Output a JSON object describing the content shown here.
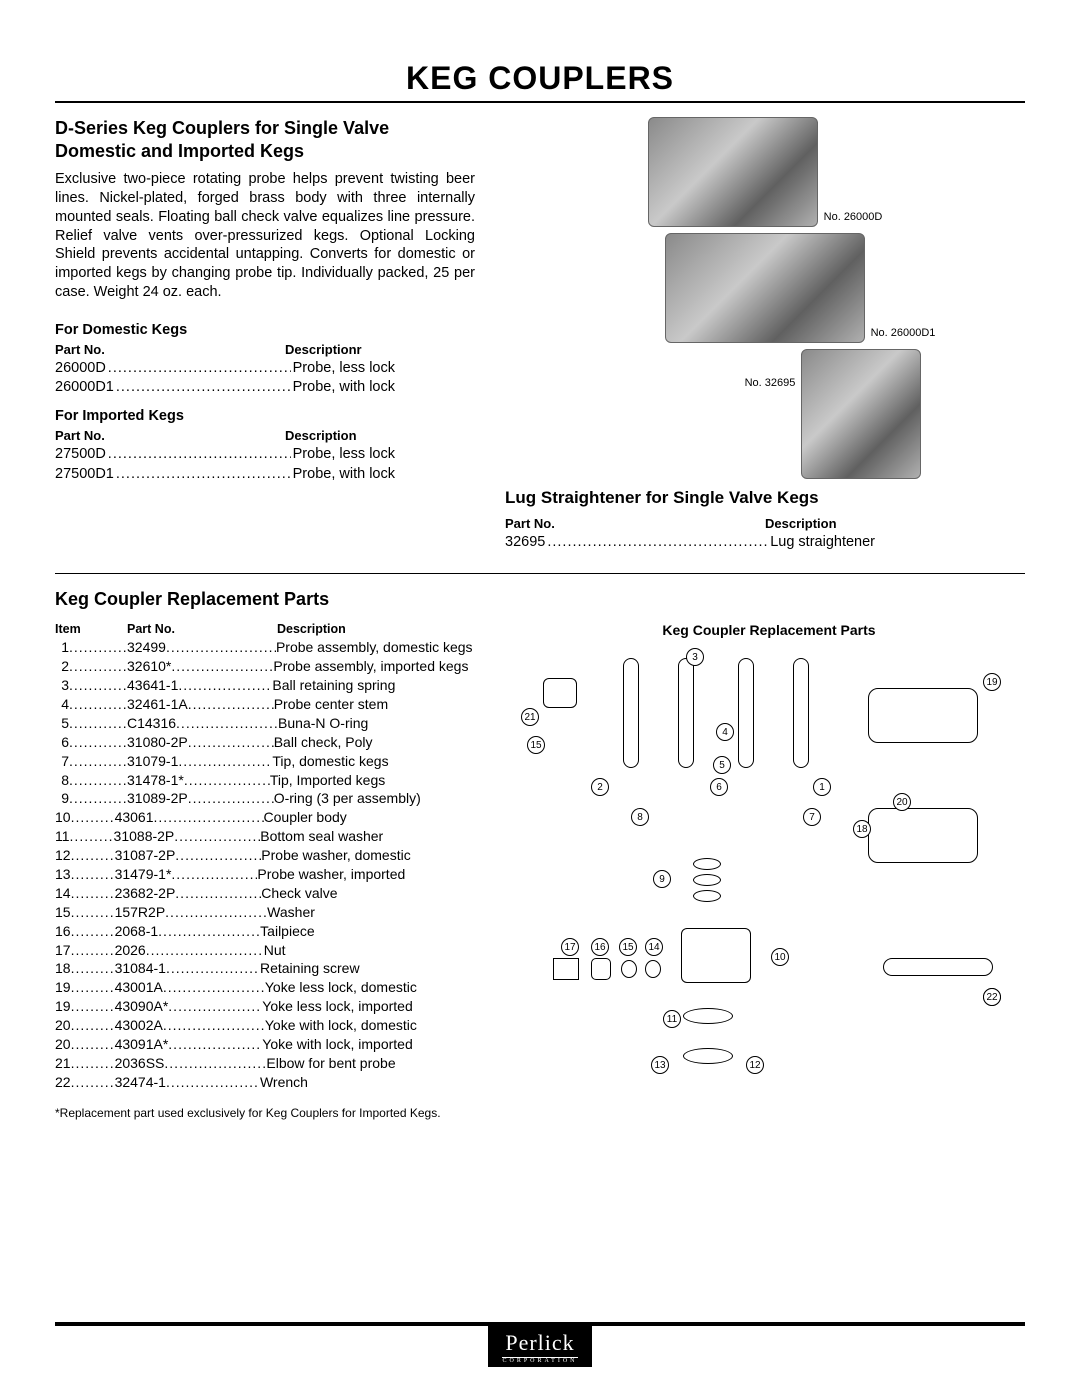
{
  "page_title": "KEG COUPLERS",
  "d_series": {
    "heading": "D-Series Keg Couplers for Single Valve Domestic and Imported Kegs",
    "body": "Exclusive two-piece rotating probe helps prevent twisting beer lines. Nickel-plated, forged brass body with three internally mounted seals. Floating ball check valve equalizes line pressure. Relief valve vents over-pressurized kegs. Optional Locking Shield prevents accidental untapping. Converts for domestic or imported kegs by changing probe tip. Individually packed, 25 per case. Weight 24 oz. each."
  },
  "domestic": {
    "heading": "For Domestic Kegs",
    "col_a": "Part No.",
    "col_b": "Descriptionr",
    "rows": [
      {
        "pn": "26000D",
        "desc": "Probe, less lock"
      },
      {
        "pn": "26000D1",
        "desc": "Probe, with lock"
      }
    ]
  },
  "imported": {
    "heading": "For Imported Kegs",
    "col_a": "Part No.",
    "col_b": "Description",
    "rows": [
      {
        "pn": "27500D",
        "desc": "Probe, less lock"
      },
      {
        "pn": "27500D1",
        "desc": "Probe, with lock"
      }
    ]
  },
  "figures": {
    "f1": "No. 26000D",
    "f2": "No. 26000D1",
    "f3": "No. 32695"
  },
  "lug": {
    "heading": "Lug Straightener for Single Valve Kegs",
    "col_a": "Part No.",
    "col_b": "Description",
    "rows": [
      {
        "pn": "32695",
        "desc": "Lug straightener"
      }
    ]
  },
  "replacement": {
    "heading": "Keg Coupler Replacement Parts",
    "col_item": "Item",
    "col_part": "Part No.",
    "col_desc": "Description",
    "diagram_title": "Keg Coupler Replacement Parts",
    "rows": [
      {
        "item": "1",
        "pn": "32499",
        "desc": "Probe assembly, domestic kegs"
      },
      {
        "item": "2",
        "pn": "32610*",
        "desc": "Probe assembly, imported kegs"
      },
      {
        "item": "3",
        "pn": "43641-1",
        "desc": "Ball retaining spring"
      },
      {
        "item": "4",
        "pn": "32461-1A",
        "desc": "Probe center stem"
      },
      {
        "item": "5",
        "pn": "C14316",
        "desc": "Buna-N O-ring"
      },
      {
        "item": "6",
        "pn": "31080-2P",
        "desc": "Ball check, Poly"
      },
      {
        "item": "7",
        "pn": "31079-1",
        "desc": "Tip, domestic kegs"
      },
      {
        "item": "8",
        "pn": "31478-1*",
        "desc": "Tip, Imported kegs"
      },
      {
        "item": "9",
        "pn": "31089-2P",
        "desc": "O-ring (3 per assembly)"
      },
      {
        "item": "10",
        "pn": "43061",
        "desc": "Coupler body"
      },
      {
        "item": "11",
        "pn": "31088-2P",
        "desc": "Bottom seal washer"
      },
      {
        "item": "12",
        "pn": "31087-2P",
        "desc": "Probe washer, domestic"
      },
      {
        "item": "13",
        "pn": "31479-1*",
        "desc": "Probe washer, imported"
      },
      {
        "item": "14",
        "pn": "23682-2P",
        "desc": "Check valve"
      },
      {
        "item": "15",
        "pn": "157R2P",
        "desc": "Washer"
      },
      {
        "item": "16",
        "pn": "2068-1",
        "desc": "Tailpiece"
      },
      {
        "item": "17",
        "pn": "2026",
        "desc": "Nut"
      },
      {
        "item": "18",
        "pn": "31084-1",
        "desc": "Retaining screw"
      },
      {
        "item": "19",
        "pn": "43001A",
        "desc": "Yoke less lock, domestic"
      },
      {
        "item": "19",
        "pn": "43090A*",
        "desc": "Yoke less lock, imported"
      },
      {
        "item": "20",
        "pn": "43002A",
        "desc": "Yoke with lock, domestic"
      },
      {
        "item": "20",
        "pn": "43091A*",
        "desc": "Yoke with lock, imported"
      },
      {
        "item": "21",
        "pn": "2036SS",
        "desc": "Elbow for bent probe"
      },
      {
        "item": "22",
        "pn": "32474-1",
        "desc": "Wrench"
      }
    ],
    "footnote": "*Replacement part used exclusively for Keg Couplers for Imported Kegs."
  },
  "diagram_callouts": [
    "1",
    "2",
    "3",
    "4",
    "5",
    "6",
    "7",
    "8",
    "9",
    "10",
    "11",
    "12",
    "13",
    "14",
    "15",
    "16",
    "17",
    "18",
    "19",
    "20",
    "21",
    "22"
  ],
  "brand": {
    "name": "Perlick",
    "sub": "CORPORATION"
  }
}
